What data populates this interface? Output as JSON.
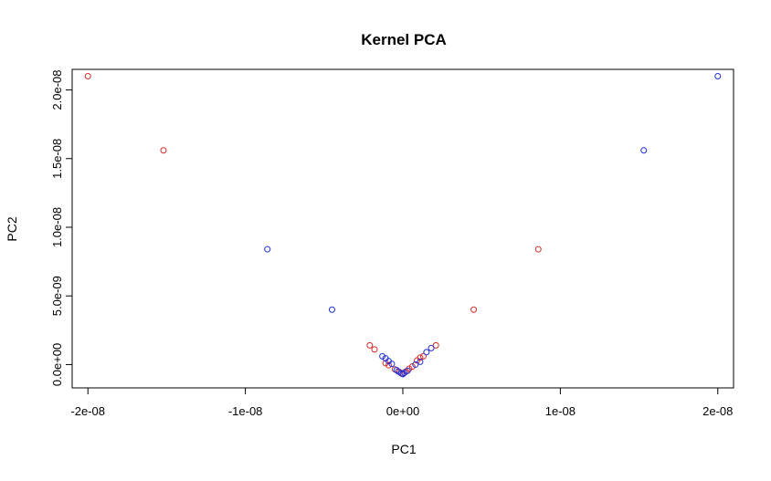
{
  "chart_data": {
    "type": "scatter",
    "title": "Kernel PCA",
    "xlabel": "PC1",
    "ylabel": "PC2",
    "xlim": [
      -2.1e-08,
      2.1e-08
    ],
    "ylim": [
      -1.7e-09,
      2.15e-08
    ],
    "x_ticks": [
      {
        "value": -2e-08,
        "label": "-2e-08"
      },
      {
        "value": -1e-08,
        "label": "-1e-08"
      },
      {
        "value": 0,
        "label": "0e+00"
      },
      {
        "value": 1e-08,
        "label": "1e-08"
      },
      {
        "value": 2e-08,
        "label": "2e-08"
      }
    ],
    "y_ticks": [
      {
        "value": 0,
        "label": "0.0e+00"
      },
      {
        "value": 5e-09,
        "label": "5.0e-09"
      },
      {
        "value": 1e-08,
        "label": "1.0e-08"
      },
      {
        "value": 1.5e-08,
        "label": "1.5e-08"
      },
      {
        "value": 2e-08,
        "label": "2.0e-08"
      }
    ],
    "grid": false,
    "marker": "open-circle",
    "colors": {
      "red": "#d62b2b",
      "blue": "#1f2fd6"
    },
    "series": [
      {
        "color": "#d62b2b",
        "x": [
          -2e-08,
          -1.52e-08,
          8.6e-09,
          4.5e-09,
          -2.1e-09,
          -1.8e-09,
          2.1e-09,
          1.3e-09,
          1.1e-09,
          9e-10,
          -1.1e-09,
          -9e-10,
          6e-10,
          4e-10,
          -5e-10,
          2e-10,
          -2e-10,
          0.0
        ],
        "y": [
          2.1e-08,
          1.56e-08,
          8.4e-09,
          4e-09,
          1.4e-09,
          1.1e-09,
          1.4e-09,
          6e-10,
          5e-10,
          3e-10,
          1e-10,
          -5e-11,
          -1.5e-10,
          -3e-10,
          -3.5e-10,
          -5e-10,
          -5.5e-10,
          -6.5e-10
        ]
      },
      {
        "color": "#1f2fd6",
        "x": [
          2e-08,
          1.53e-08,
          -8.6e-09,
          -4.5e-09,
          -1.3e-09,
          -1.1e-09,
          -9e-10,
          -7e-10,
          1.8e-09,
          1.5e-09,
          1.1e-09,
          8e-10,
          -4e-10,
          -3e-10,
          3e-10,
          1e-10,
          -1e-10,
          0.0
        ],
        "y": [
          2.1e-08,
          1.56e-08,
          8.4e-09,
          4e-09,
          6e-10,
          4.5e-10,
          2.5e-10,
          5e-11,
          1.2e-09,
          9e-10,
          2e-10,
          0.0,
          -4e-10,
          -5e-10,
          -4.5e-10,
          -6e-10,
          -6.5e-10,
          -7e-10
        ]
      }
    ]
  }
}
